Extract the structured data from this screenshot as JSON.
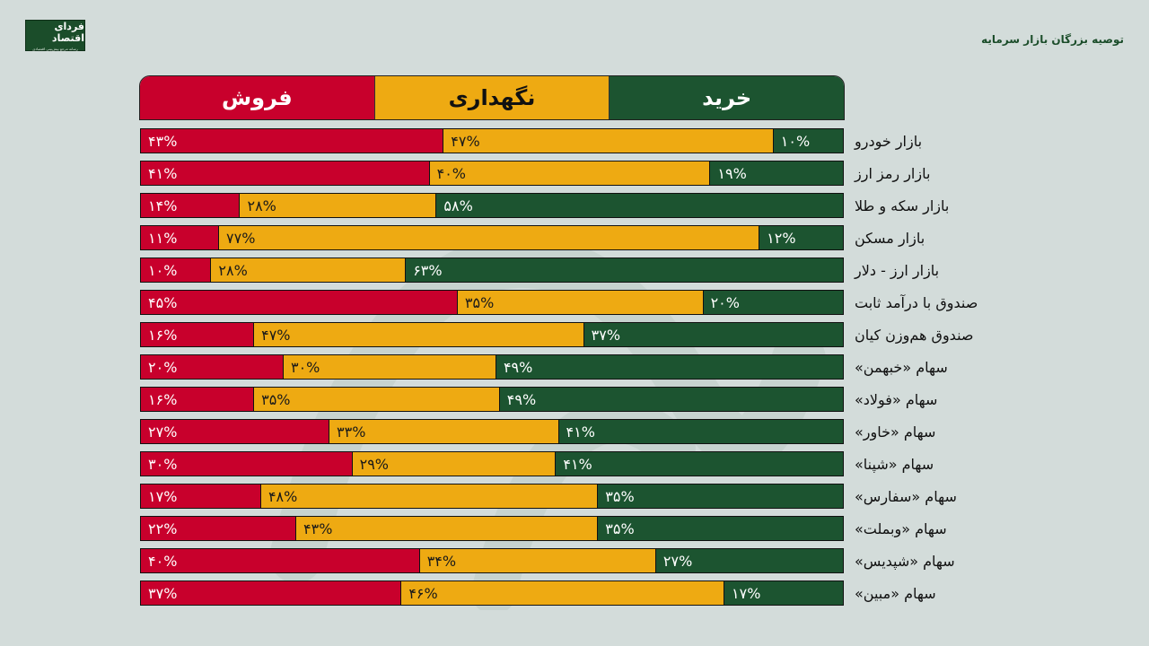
{
  "branding": {
    "logo_name": "فردای اقتصاد",
    "logo_subtitle": "رسانه مرجع پیش‌بینی اقتصادی",
    "page_title": "توصیه بزرگان بازار سرمایه"
  },
  "colors": {
    "background": "#d3dcda",
    "sell": "#c8002c",
    "hold": "#eeaa12",
    "buy": "#1c5430"
  },
  "header": {
    "buy_label": "خرید",
    "hold_label": "نگهداری",
    "sell_label": "فروش"
  },
  "rows": [
    {
      "label": "بازار خودرو",
      "sell": "۴۳%",
      "hold": "۴۷%",
      "buy": "۱۰%"
    },
    {
      "label": "بازار رمز ارز",
      "sell": "۴۱%",
      "hold": "۴۰%",
      "buy": "۱۹%"
    },
    {
      "label": "بازار سکه و طلا",
      "sell": "۱۴%",
      "hold": "۲۸%",
      "buy": "۵۸%"
    },
    {
      "label": "بازار مسکن",
      "sell": "۱۱%",
      "hold": "۷۷%",
      "buy": "۱۲%"
    },
    {
      "label": "بازار ارز - دلار",
      "sell": "۱۰%",
      "hold": "۲۸%",
      "buy": "۶۳%"
    },
    {
      "label": "صندوق با درآمد ثابت",
      "sell": "۴۵%",
      "hold": "۳۵%",
      "buy": "۲۰%"
    },
    {
      "label": "صندوق هم‌وزن کیان",
      "sell": "۱۶%",
      "hold": "۴۷%",
      "buy": "۳۷%"
    },
    {
      "label": "سهام «خبهمن»",
      "sell": "۲۰%",
      "hold": "۳۰%",
      "buy": "۴۹%"
    },
    {
      "label": "سهام «فولاد»",
      "sell": "۱۶%",
      "hold": "۳۵%",
      "buy": "۴۹%"
    },
    {
      "label": "سهام «خاور»",
      "sell": "۲۷%",
      "hold": "۳۳%",
      "buy": "۴۱%"
    },
    {
      "label": "سهام «شپنا»",
      "sell": "۳۰%",
      "hold": "۲۹%",
      "buy": "۴۱%"
    },
    {
      "label": "سهام «سفارس»",
      "sell": "۱۷%",
      "hold": "۴۸%",
      "buy": "۳۵%"
    },
    {
      "label": "سهام «وبملت»",
      "sell": "۲۲%",
      "hold": "۴۳%",
      "buy": "۳۵%"
    },
    {
      "label": "سهام «شپدیس»",
      "sell": "۴۰%",
      "hold": "۳۴%",
      "buy": "۲۷%"
    },
    {
      "label": "سهام «مبین»",
      "sell": "۳۷%",
      "hold": "۴۶%",
      "buy": "۱۷%"
    }
  ],
  "chart_data": {
    "type": "bar",
    "stacked": true,
    "orientation": "horizontal",
    "title": "توصیه بزرگان بازار سرمایه",
    "categories": [
      "بازار خودرو",
      "بازار رمز ارز",
      "بازار سکه و طلا",
      "بازار مسکن",
      "بازار ارز - دلار",
      "صندوق با درآمد ثابت",
      "صندوق هم‌وزن کیان",
      "سهام «خبهمن»",
      "سهام «فولاد»",
      "سهام «خاور»",
      "سهام «شپنا»",
      "سهام «سفارس»",
      "سهام «وبملت»",
      "سهام «شپدیس»",
      "سهام «مبین»"
    ],
    "series": [
      {
        "name": "فروش",
        "color": "#c8002c",
        "values": [
          43,
          41,
          14,
          11,
          10,
          45,
          16,
          20,
          16,
          27,
          30,
          17,
          22,
          40,
          37
        ]
      },
      {
        "name": "نگهداری",
        "color": "#eeaa12",
        "values": [
          47,
          40,
          28,
          77,
          28,
          35,
          47,
          30,
          35,
          33,
          29,
          48,
          43,
          34,
          46
        ]
      },
      {
        "name": "خرید",
        "color": "#1c5430",
        "values": [
          10,
          19,
          58,
          12,
          63,
          20,
          37,
          49,
          49,
          41,
          41,
          35,
          35,
          27,
          17
        ]
      }
    ],
    "legend": [
      "خرید",
      "نگهداری",
      "فروش"
    ],
    "legend_position": "top",
    "xlabel": "",
    "ylabel": "",
    "xlim": [
      0,
      100
    ],
    "unit": "%",
    "grid": false
  }
}
